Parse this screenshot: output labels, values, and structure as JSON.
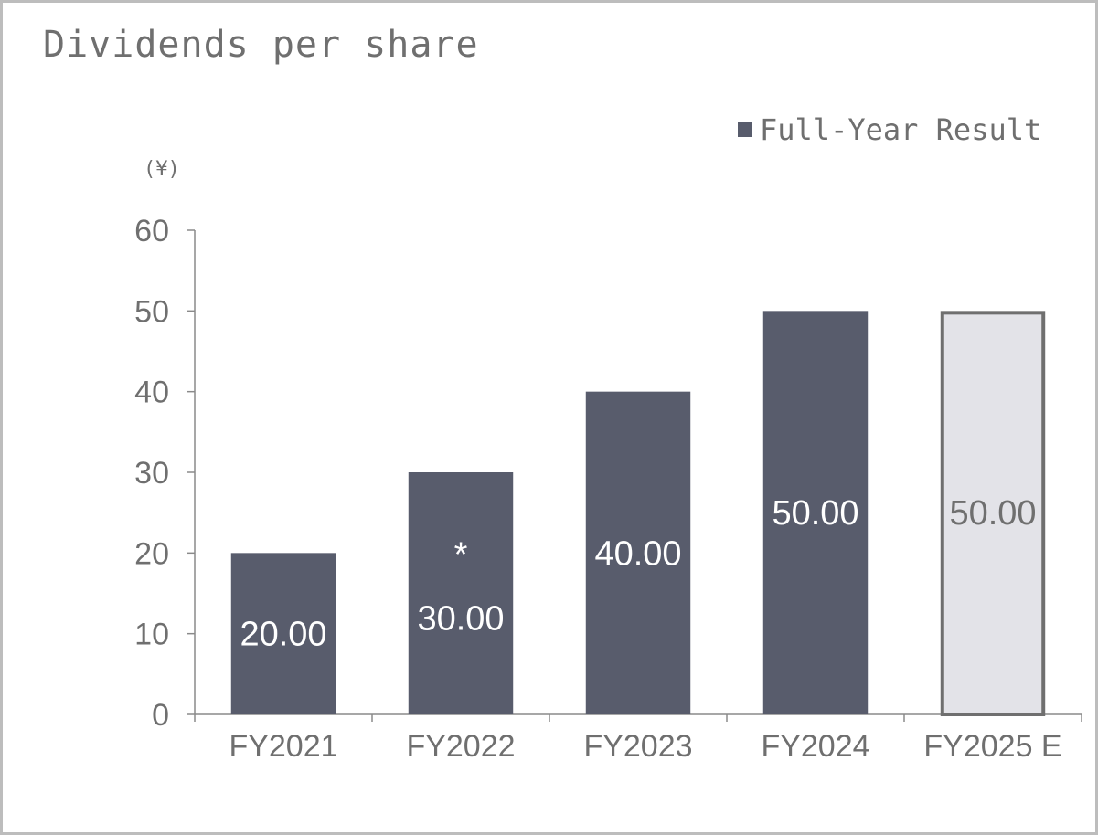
{
  "chart_data": {
    "type": "bar",
    "title": "Dividends per share",
    "unit_label": "(¥)",
    "legend": "Full-Year Result",
    "legend_position": "top-right",
    "categories": [
      "FY2021",
      "FY2022",
      "FY2023",
      "FY2024",
      "FY2025 E"
    ],
    "values": [
      20,
      30,
      40,
      50,
      50
    ],
    "value_labels": [
      "20.00",
      "30.00",
      "40.00",
      "50.00",
      "50.00"
    ],
    "annotations": [
      "",
      "*",
      "",
      "",
      ""
    ],
    "estimate": [
      false,
      false,
      false,
      false,
      true
    ],
    "y_ticks": [
      "0",
      "10",
      "20",
      "30",
      "40",
      "50",
      "60"
    ],
    "ylim": [
      0,
      60
    ],
    "grid": false,
    "colors": {
      "bar": "#585c6c",
      "estimate_fill": "#e3e3e8",
      "estimate_border": "#6f6f6f",
      "text": "#6f6f6f",
      "bar_label": "#ffffff",
      "axis": "#8a8a8a"
    }
  }
}
